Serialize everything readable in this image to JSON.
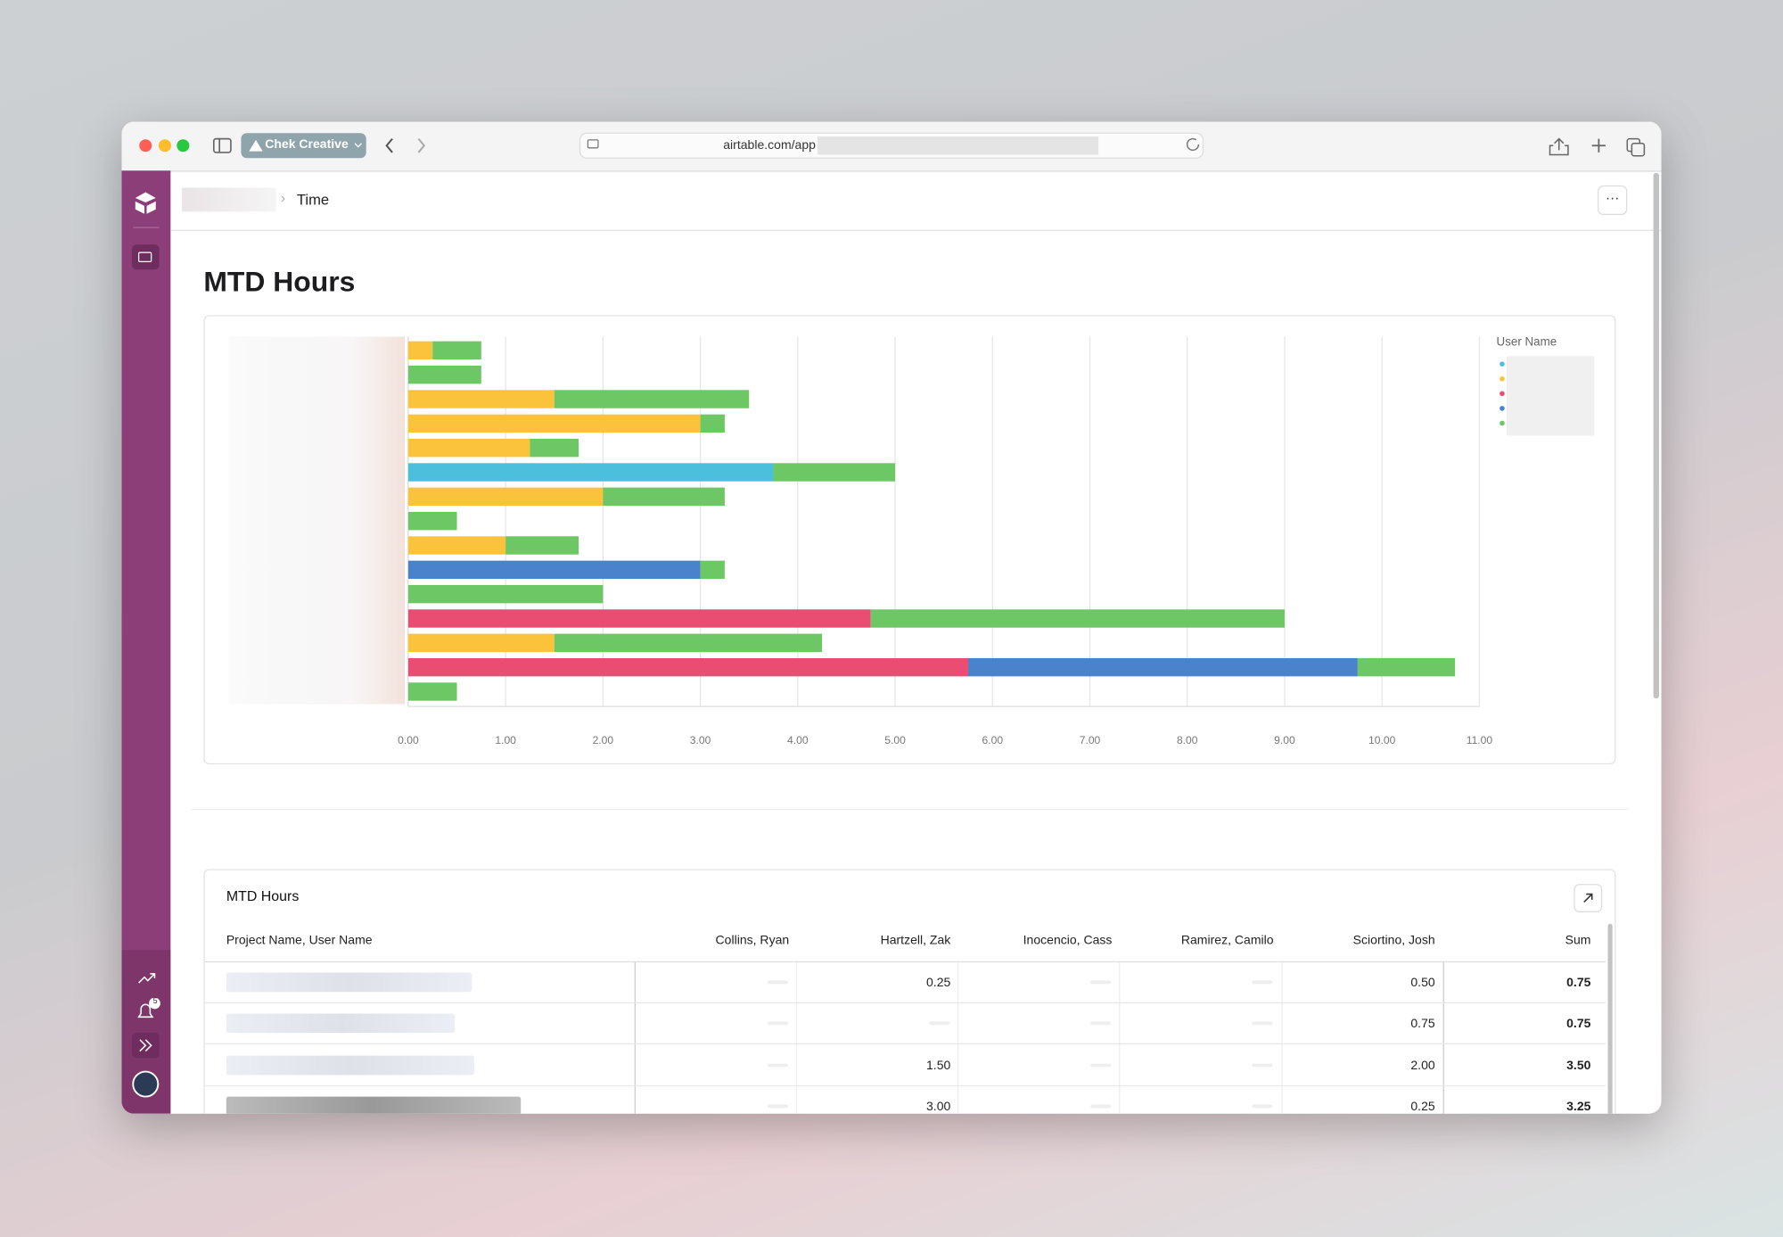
{
  "browser": {
    "tab_group": "Chek Creative",
    "url": "airtable.com/app"
  },
  "sidebar": {
    "notification_count": "5"
  },
  "header": {
    "breadcrumb": "Time"
  },
  "page_title": "MTD Hours",
  "chart_data": {
    "type": "stacked_bar_horizontal",
    "legend_title": "User Name",
    "categories": [
      null,
      null,
      null,
      null,
      null,
      null,
      null,
      null,
      null,
      null,
      null,
      null,
      null,
      null,
      null
    ],
    "series": [
      {
        "color": "#4cbfdc",
        "values": [
          null,
          null,
          null,
          null,
          null,
          3.75,
          null,
          null,
          null,
          null,
          null,
          null,
          null,
          null,
          null
        ]
      },
      {
        "color": "#fbc33b",
        "values": [
          0.25,
          null,
          1.5,
          3.0,
          1.25,
          null,
          2.0,
          null,
          1.0,
          null,
          null,
          null,
          1.5,
          null,
          null
        ]
      },
      {
        "color": "#ea4d72",
        "values": [
          null,
          null,
          null,
          null,
          null,
          null,
          null,
          null,
          null,
          null,
          null,
          4.75,
          null,
          5.75,
          null
        ]
      },
      {
        "color": "#4a83cc",
        "values": [
          null,
          null,
          null,
          null,
          null,
          null,
          null,
          null,
          null,
          3.0,
          null,
          null,
          null,
          4.0,
          null
        ]
      },
      {
        "color": "#6dc764",
        "values": [
          0.5,
          0.75,
          2.0,
          0.25,
          0.5,
          1.25,
          1.25,
          0.5,
          0.75,
          0.25,
          2.0,
          4.25,
          2.75,
          1.0,
          0.5
        ]
      }
    ],
    "xlim": [
      0,
      11
    ],
    "xticks": [
      {
        "value": 0,
        "label": "0.00"
      },
      {
        "value": 1,
        "label": "1.00"
      },
      {
        "value": 2,
        "label": "2.00"
      },
      {
        "value": 3,
        "label": "3.00"
      },
      {
        "value": 4,
        "label": "4.00"
      },
      {
        "value": 5,
        "label": "5.00"
      },
      {
        "value": 6,
        "label": "6.00"
      },
      {
        "value": 7,
        "label": "7.00"
      },
      {
        "value": 8,
        "label": "8.00"
      },
      {
        "value": 9,
        "label": "9.00"
      },
      {
        "value": 10,
        "label": "10.00"
      },
      {
        "value": 11,
        "label": "11.00"
      }
    ],
    "grid": true
  },
  "table": {
    "title": "MTD Hours",
    "columns": [
      "Project Name, User Name",
      "Collins, Ryan",
      "Hartzell, Zak",
      "Inocencio, Cass",
      "Ramirez, Camilo",
      "Sciortino, Josh",
      "Sum"
    ],
    "rows": [
      [
        null,
        null,
        "0.25",
        null,
        null,
        "0.50",
        "0.75"
      ],
      [
        null,
        null,
        null,
        null,
        null,
        "0.75",
        "0.75"
      ],
      [
        null,
        null,
        "1.50",
        null,
        null,
        "2.00",
        "3.50"
      ],
      [
        null,
        null,
        "3.00",
        null,
        null,
        "0.25",
        "3.25"
      ]
    ]
  }
}
